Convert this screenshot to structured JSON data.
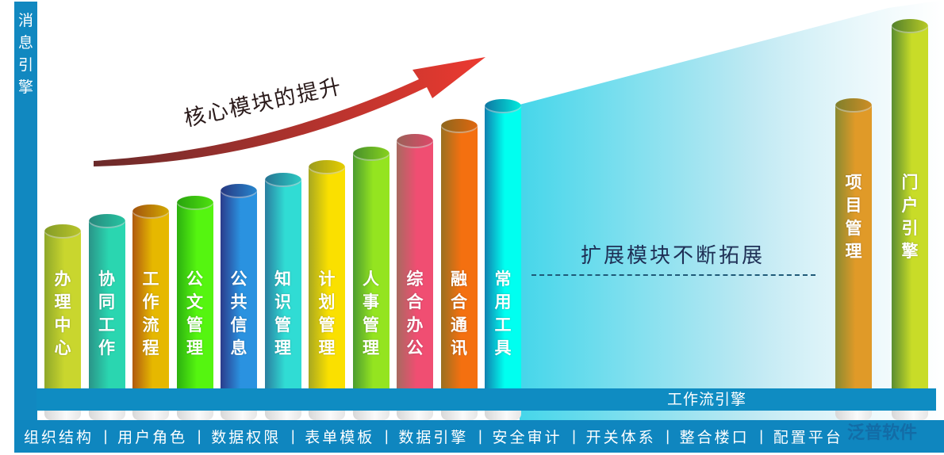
{
  "left_bar": {
    "label": "消息引擎"
  },
  "arrow_caption": "核心模块的提升",
  "extension_caption": "扩展模块不断拓展",
  "core_modules": [
    {
      "label": "办理中心",
      "colors": [
        "#8fa82a",
        "#c9d62e"
      ]
    },
    {
      "label": "协同工作",
      "colors": [
        "#2a9488",
        "#2ad6b0"
      ]
    },
    {
      "label": "工作流程",
      "colors": [
        "#b05a10",
        "#e6b800"
      ]
    },
    {
      "label": "公文管理",
      "colors": [
        "#2cb010",
        "#55f510"
      ]
    },
    {
      "label": "公共信息",
      "colors": [
        "#2a3c8c",
        "#2a92e0"
      ]
    },
    {
      "label": "知识管理",
      "colors": [
        "#2a7ea0",
        "#30dcd4"
      ]
    },
    {
      "label": "计划管理",
      "colors": [
        "#a8a820",
        "#fae000"
      ]
    },
    {
      "label": "人事管理",
      "colors": [
        "#4c9c30",
        "#94e420"
      ]
    },
    {
      "label": "综合办公",
      "colors": [
        "#a86a60",
        "#f04e72"
      ]
    },
    {
      "label": "融合通讯",
      "colors": [
        "#9a7020",
        "#f47010"
      ]
    },
    {
      "label": "常用工具",
      "colors": [
        "#1080b0",
        "#00fff0"
      ]
    }
  ],
  "extension_modules": [
    {
      "label": "项目管理",
      "colors": [
        "#8a8a30",
        "#e09a28"
      ]
    },
    {
      "label": "门户引擎",
      "colors": [
        "#5a8c30",
        "#c8dc28"
      ]
    }
  ],
  "workflow_bar": {
    "label": "工作流引擎"
  },
  "bottom_bar": {
    "items": [
      "组织结构",
      "用户角色",
      "数据权限",
      "表单模板",
      "数据引擎",
      "安全审计",
      "开关体系",
      "整合楼口",
      "配置平台"
    ],
    "separator": "|"
  },
  "watermark": "泛普软件",
  "colors": {
    "bar_blue": "#0f8cc2",
    "arrow_red": "#e03a30",
    "extension_gradient": "#40d4e8"
  }
}
